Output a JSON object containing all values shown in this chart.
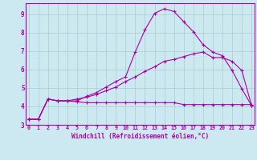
{
  "title": "",
  "xlabel": "Windchill (Refroidissement éolien,°C)",
  "ylabel": "",
  "background_color": "#cce8f0",
  "grid_color": "#aacccc",
  "line_color": "#aa00aa",
  "spine_color": "#aa00aa",
  "x_ticks": [
    0,
    1,
    2,
    3,
    4,
    5,
    6,
    7,
    8,
    9,
    10,
    11,
    12,
    13,
    14,
    15,
    16,
    17,
    18,
    19,
    20,
    21,
    22,
    23
  ],
  "y_ticks": [
    3,
    4,
    5,
    6,
    7,
    8,
    9
  ],
  "xlim": [
    -0.3,
    23.3
  ],
  "ylim": [
    3.0,
    9.6
  ],
  "series1_x": [
    0,
    1,
    2,
    3,
    4,
    5,
    6,
    7,
    8,
    9,
    10,
    11,
    12,
    13,
    14,
    15,
    16,
    17,
    18,
    19,
    20,
    21,
    22,
    23
  ],
  "series1_y": [
    3.3,
    3.3,
    4.4,
    4.3,
    4.3,
    4.25,
    4.2,
    4.2,
    4.2,
    4.2,
    4.2,
    4.2,
    4.2,
    4.2,
    4.2,
    4.2,
    4.1,
    4.1,
    4.1,
    4.1,
    4.1,
    4.1,
    4.1,
    4.1
  ],
  "series2_x": [
    0,
    1,
    2,
    3,
    4,
    5,
    6,
    7,
    8,
    9,
    10,
    11,
    12,
    13,
    14,
    15,
    16,
    17,
    18,
    19,
    20,
    21,
    22,
    23
  ],
  "series2_y": [
    3.3,
    3.3,
    4.4,
    4.3,
    4.3,
    4.4,
    4.5,
    4.65,
    4.85,
    5.05,
    5.35,
    5.6,
    5.9,
    6.15,
    6.45,
    6.55,
    6.7,
    6.85,
    6.95,
    6.65,
    6.65,
    6.45,
    5.95,
    4.05
  ],
  "series3_x": [
    0,
    1,
    2,
    3,
    4,
    5,
    6,
    7,
    8,
    9,
    10,
    11,
    12,
    13,
    14,
    15,
    16,
    17,
    18,
    19,
    20,
    21,
    22,
    23
  ],
  "series3_y": [
    3.3,
    3.3,
    4.4,
    4.3,
    4.3,
    4.3,
    4.55,
    4.75,
    5.05,
    5.35,
    5.6,
    6.95,
    8.15,
    9.05,
    9.3,
    9.15,
    8.6,
    8.05,
    7.35,
    6.95,
    6.75,
    5.95,
    4.95,
    4.05
  ]
}
